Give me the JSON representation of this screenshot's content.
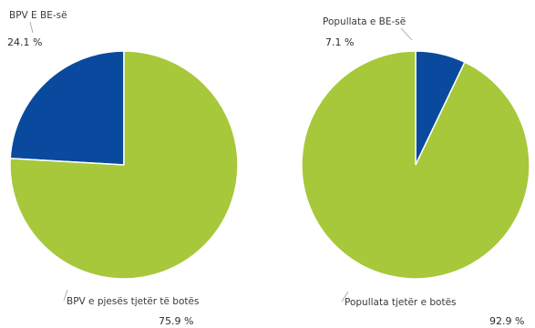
{
  "chart_data": [
    {
      "type": "pie",
      "slices": [
        {
          "label": "BPV E BE-së",
          "value": 24.1,
          "value_label": "24.1 %",
          "color": "#0a4a9e"
        },
        {
          "label": "BPV e pjesës tjetër të botës",
          "value": 75.9,
          "value_label": "75.9 %",
          "color": "#a6c83a"
        }
      ]
    },
    {
      "type": "pie",
      "slices": [
        {
          "label": "Popullata e BE-së",
          "value": 7.1,
          "value_label": "7.1 %",
          "color": "#0a4a9e"
        },
        {
          "label": "Popullata tjetër e botës",
          "value": 92.9,
          "value_label": "92.9 %",
          "color": "#a6c83a"
        }
      ]
    }
  ]
}
